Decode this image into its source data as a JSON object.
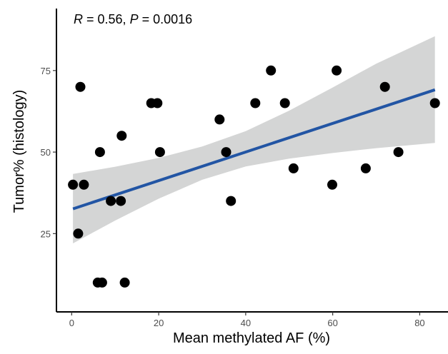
{
  "chart_data": {
    "type": "scatter",
    "title": "",
    "xlabel": "Mean methylated AF (%)",
    "ylabel": "Tumor% (histology)",
    "xlim": [
      -3.5,
      86.5
    ],
    "ylim": [
      1,
      94
    ],
    "x_ticks": [
      0,
      20,
      40,
      60,
      80
    ],
    "y_ticks": [
      25,
      50,
      75
    ],
    "grid": false,
    "legend": "none",
    "annotation": {
      "r_symbol": "R",
      "r_text": " = 0.56, ",
      "p_symbol": "P",
      "p_text": " = 0.0016"
    },
    "points": [
      {
        "x": 0.3,
        "y": 40
      },
      {
        "x": 1.5,
        "y": 25
      },
      {
        "x": 2.0,
        "y": 70
      },
      {
        "x": 2.8,
        "y": 40
      },
      {
        "x": 6.0,
        "y": 10
      },
      {
        "x": 6.5,
        "y": 50
      },
      {
        "x": 7.0,
        "y": 10
      },
      {
        "x": 9.0,
        "y": 35
      },
      {
        "x": 11.3,
        "y": 35
      },
      {
        "x": 11.5,
        "y": 55
      },
      {
        "x": 12.2,
        "y": 10
      },
      {
        "x": 18.3,
        "y": 65
      },
      {
        "x": 19.7,
        "y": 65
      },
      {
        "x": 20.3,
        "y": 50
      },
      {
        "x": 34.0,
        "y": 60
      },
      {
        "x": 35.5,
        "y": 50
      },
      {
        "x": 36.6,
        "y": 35
      },
      {
        "x": 42.2,
        "y": 65
      },
      {
        "x": 45.8,
        "y": 75
      },
      {
        "x": 49.0,
        "y": 65
      },
      {
        "x": 51.0,
        "y": 45
      },
      {
        "x": 59.9,
        "y": 40
      },
      {
        "x": 60.9,
        "y": 75
      },
      {
        "x": 67.6,
        "y": 45
      },
      {
        "x": 72.0,
        "y": 70
      },
      {
        "x": 75.1,
        "y": 50
      },
      {
        "x": 83.5,
        "y": 65
      }
    ],
    "fit": {
      "method": "linear",
      "x_start": 0.3,
      "x_end": 83.5,
      "y_start": 32.6,
      "y_end": 69.1,
      "ci_lower": [
        {
          "x": 0.3,
          "y": 22.0
        },
        {
          "x": 10,
          "y": 29.0
        },
        {
          "x": 20,
          "y": 35.7
        },
        {
          "x": 30,
          "y": 41.5
        },
        {
          "x": 40,
          "y": 45.6
        },
        {
          "x": 50,
          "y": 48.0
        },
        {
          "x": 60,
          "y": 49.7
        },
        {
          "x": 70,
          "y": 51.2
        },
        {
          "x": 83.5,
          "y": 52.8
        }
      ],
      "ci_upper": [
        {
          "x": 0.3,
          "y": 43.3
        },
        {
          "x": 10,
          "y": 45.5
        },
        {
          "x": 20,
          "y": 48.2
        },
        {
          "x": 30,
          "y": 51.7
        },
        {
          "x": 40,
          "y": 56.4
        },
        {
          "x": 50,
          "y": 62.7
        },
        {
          "x": 60,
          "y": 69.8
        },
        {
          "x": 70,
          "y": 77.1
        },
        {
          "x": 83.5,
          "y": 85.5
        }
      ]
    },
    "colors": {
      "points": "#000000",
      "fit_line": "#2255a4",
      "ci_band": "#d4d5d5",
      "axis": "#000000",
      "tick_label": "#4d4d4d"
    }
  }
}
